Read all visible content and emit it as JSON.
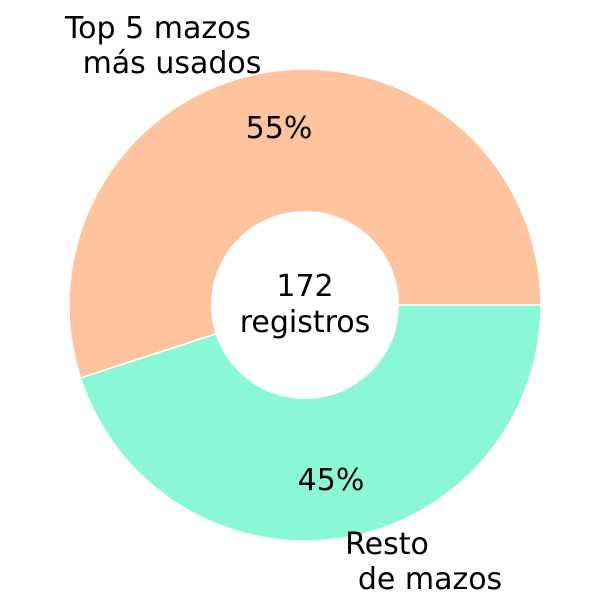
{
  "chart_data": {
    "type": "pie",
    "subtype": "donut",
    "slices": [
      {
        "label_lines": [
          "Top 5 mazos",
          "más usados"
        ],
        "value": 55,
        "value_label": "55%",
        "color": "#ffc49e"
      },
      {
        "label_lines": [
          "Resto",
          "de mazos"
        ],
        "value": 45,
        "value_label": "45%",
        "color": "#8af8d7"
      }
    ],
    "center_text": [
      "172",
      "registros"
    ],
    "legend": "none"
  }
}
